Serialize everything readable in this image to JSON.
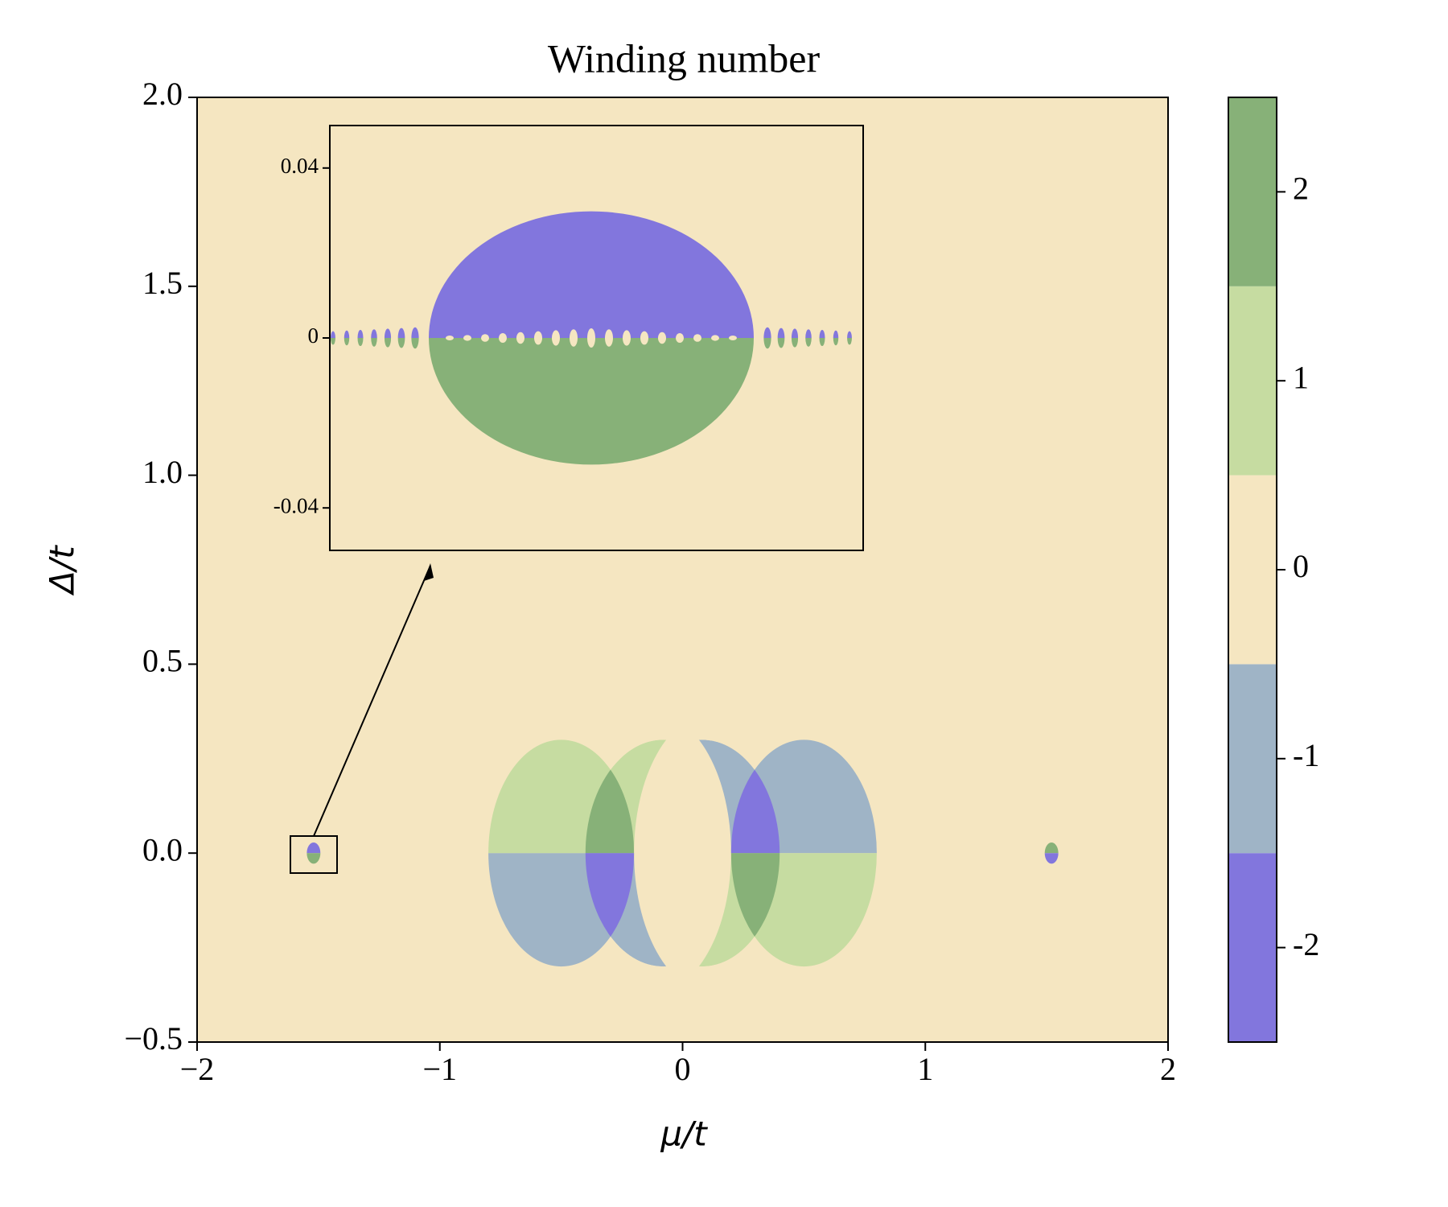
{
  "chart_data": {
    "type": "phase-diagram",
    "title": "Winding number",
    "xlabel": "μ/t",
    "ylabel": "Δ/t",
    "xlim": [
      -2,
      2
    ],
    "ylim": [
      -0.5,
      2
    ],
    "xticks": [
      {
        "value": -2,
        "label": "−2"
      },
      {
        "value": -1,
        "label": "−1"
      },
      0,
      1,
      2
    ],
    "yticks": [
      {
        "value": -0.5,
        "label": "−0.5"
      },
      {
        "value": 0,
        "label": "0.0"
      },
      0.5,
      {
        "value": 1,
        "label": "1.0"
      },
      1.5,
      {
        "value": 2,
        "label": "2.0"
      }
    ],
    "colorbar": {
      "lim": [
        -2.5,
        2.5
      ],
      "ticks": [
        -2,
        -1,
        0,
        1,
        2
      ],
      "colors": [
        "#8276dd",
        "#9fb4c6",
        "#f5e6c1",
        "#c6dca1",
        "#87b178"
      ]
    },
    "inset": {
      "ylim": [
        -0.05,
        0.05
      ],
      "yticks": [
        -0.04,
        0,
        0.04
      ]
    }
  }
}
